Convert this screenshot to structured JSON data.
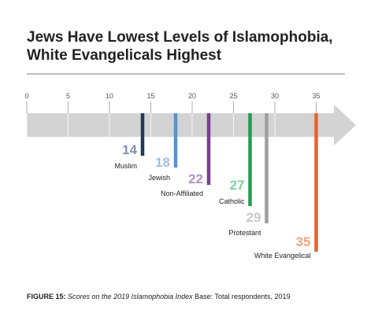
{
  "title": {
    "line1": "Jews Have Lowest Levels of Islamophobia,",
    "line2": "White Evangelicals Highest"
  },
  "caption": {
    "figure_label": "FIGURE 15:",
    "italic": "Scores on the 2019 Islamophobia Index",
    "rest": "Base: Total respondents, 2019"
  },
  "chart_data": {
    "type": "bar",
    "title": "Jews Have Lowest Levels of Islamophobia, White Evangelicals Highest",
    "axis_ticks": [
      0,
      5,
      10,
      15,
      20,
      25,
      30,
      35
    ],
    "xlim": [
      0,
      39
    ],
    "grid": true,
    "arrow_color": "#d3d3d3",
    "categories": [
      "Muslim",
      "Jewish",
      "Non-Affiliated",
      "Catholic",
      "Protestant",
      "White Evangelical"
    ],
    "values": [
      14,
      18,
      22,
      27,
      29,
      35
    ],
    "colors": [
      "#1f3a5a",
      "#5b93c7",
      "#7d3a96",
      "#1e9e4e",
      "#9e9e9e",
      "#e8622a"
    ],
    "label_colors": [
      "#7f93ab",
      "#9fc1e0",
      "#b790c4",
      "#82cf9c",
      "#c8c8c8",
      "#f0a57f"
    ]
  }
}
